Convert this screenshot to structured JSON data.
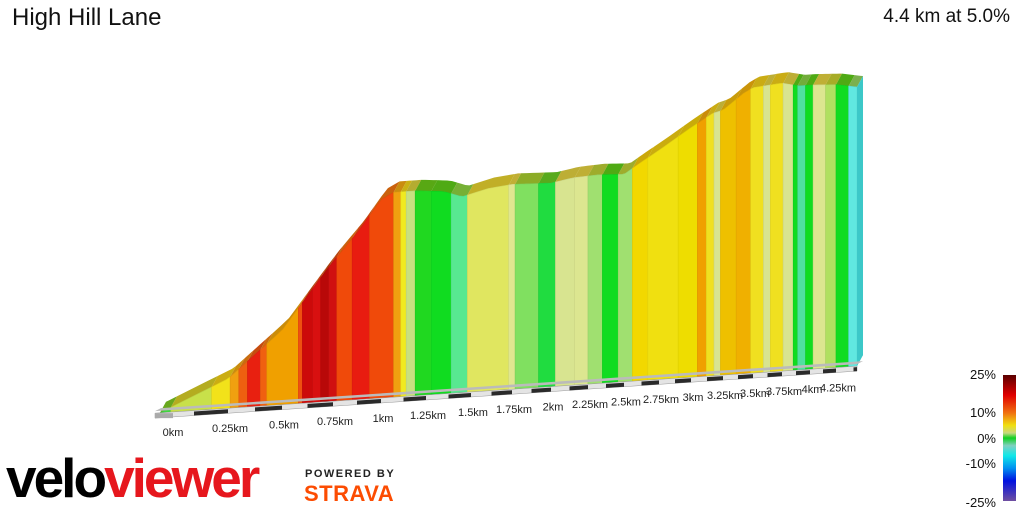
{
  "header": {
    "title": "High Hill Lane",
    "summary": "4.4 km at 5.0%"
  },
  "branding": {
    "logo_left": "velo",
    "logo_right": "viewer",
    "powered_by": "POWERED BY",
    "strava": "STRAVA"
  },
  "legend": {
    "labels": [
      "25%",
      "10%",
      "0%",
      "-10%",
      "-25%"
    ],
    "stops": [
      {
        "pct": 25,
        "color": "#5a0000"
      },
      {
        "pct": 17,
        "color": "#e00000"
      },
      {
        "pct": 10,
        "color": "#f07010"
      },
      {
        "pct": 5,
        "color": "#f0e010"
      },
      {
        "pct": 2,
        "color": "#c8d880"
      },
      {
        "pct": 0,
        "color": "#10d020"
      },
      {
        "pct": -3,
        "color": "#80d0c0"
      },
      {
        "pct": -7,
        "color": "#10e8e8"
      },
      {
        "pct": -12,
        "color": "#0090f0"
      },
      {
        "pct": -17,
        "color": "#0010e0"
      },
      {
        "pct": -25,
        "color": "#7050a0"
      }
    ]
  },
  "chart_data": {
    "type": "area",
    "title": "",
    "xlabel": "",
    "ylabel": "",
    "x_unit": "km",
    "xlim": [
      0,
      4.4
    ],
    "tick_labels": [
      "0km",
      "0.25km",
      "0.5km",
      "0.75km",
      "1km",
      "1.25km",
      "1.5km",
      "1.75km",
      "2km",
      "2.25km",
      "2.5km",
      "2.75km",
      "3km",
      "3.25km",
      "3.5km",
      "3.75km",
      "4km",
      "4.25km"
    ],
    "tick_values": [
      0,
      0.25,
      0.5,
      0.75,
      1,
      1.25,
      1.5,
      1.75,
      2,
      2.25,
      2.5,
      2.75,
      3,
      3.25,
      3.5,
      3.75,
      4,
      4.25
    ],
    "elevation_profile_relative_m": [
      [
        0,
        0
      ],
      [
        0.25,
        23
      ],
      [
        0.5,
        58
      ],
      [
        0.68,
        95
      ],
      [
        0.75,
        109
      ],
      [
        0.88,
        131
      ],
      [
        1.0,
        155
      ],
      [
        1.07,
        160
      ],
      [
        1.2,
        160
      ],
      [
        1.35,
        158
      ],
      [
        1.45,
        153
      ],
      [
        1.6,
        158
      ],
      [
        1.75,
        160
      ],
      [
        2.0,
        159
      ],
      [
        2.15,
        162
      ],
      [
        2.32,
        163
      ],
      [
        2.5,
        162
      ],
      [
        2.6,
        169
      ],
      [
        2.75,
        179
      ],
      [
        3.0,
        195
      ],
      [
        3.17,
        205
      ],
      [
        3.25,
        207
      ],
      [
        3.42,
        219
      ],
      [
        3.5,
        223
      ],
      [
        3.75,
        225
      ],
      [
        3.9,
        222
      ],
      [
        4.0,
        222
      ],
      [
        4.25,
        221
      ],
      [
        4.4,
        218
      ]
    ],
    "segments": [
      {
        "start_km": 0,
        "gradient": 1,
        "color": "#3ed63e"
      },
      {
        "start_km": 0.04,
        "gradient": 3,
        "color": "#c8e04a"
      },
      {
        "start_km": 0.19,
        "gradient": 6,
        "color": "#f2e21a"
      },
      {
        "start_km": 0.26,
        "gradient": 9,
        "color": "#f0a010"
      },
      {
        "start_km": 0.3,
        "gradient": 11,
        "color": "#ee6010"
      },
      {
        "start_km": 0.34,
        "gradient": 14,
        "color": "#e82010"
      },
      {
        "start_km": 0.4,
        "gradient": 11,
        "color": "#f06010"
      },
      {
        "start_km": 0.43,
        "gradient": 9,
        "color": "#f0a000"
      },
      {
        "start_km": 0.58,
        "gradient": 13,
        "color": "#ee5010"
      },
      {
        "start_km": 0.6,
        "gradient": 17,
        "color": "#cc0a0a"
      },
      {
        "start_km": 0.65,
        "gradient": 15,
        "color": "#d81010"
      },
      {
        "start_km": 0.69,
        "gradient": 19,
        "color": "#b80808"
      },
      {
        "start_km": 0.73,
        "gradient": 16,
        "color": "#d01010"
      },
      {
        "start_km": 0.77,
        "gradient": 12,
        "color": "#f04a0a"
      },
      {
        "start_km": 0.85,
        "gradient": 14,
        "color": "#e81c10"
      },
      {
        "start_km": 0.94,
        "gradient": 12,
        "color": "#f04a0a"
      },
      {
        "start_km": 1.07,
        "gradient": 9,
        "color": "#f0a010"
      },
      {
        "start_km": 1.11,
        "gradient": 5,
        "color": "#f0ea20"
      },
      {
        "start_km": 1.14,
        "gradient": 2,
        "color": "#c8e080"
      },
      {
        "start_km": 1.19,
        "gradient": 0,
        "color": "#20d820"
      },
      {
        "start_km": 1.28,
        "gradient": -1,
        "color": "#10dc20"
      },
      {
        "start_km": 1.39,
        "gradient": -5,
        "color": "#58e890"
      },
      {
        "start_km": 1.48,
        "gradient": 3,
        "color": "#e0e660"
      },
      {
        "start_km": 1.73,
        "gradient": 2,
        "color": "#e0e690"
      },
      {
        "start_km": 1.77,
        "gradient": 1,
        "color": "#80e060"
      },
      {
        "start_km": 1.92,
        "gradient": 0,
        "color": "#20dc40"
      },
      {
        "start_km": 2.03,
        "gradient": 2,
        "color": "#d8e490"
      },
      {
        "start_km": 2.16,
        "gradient": 2,
        "color": "#dce690"
      },
      {
        "start_km": 2.25,
        "gradient": 1,
        "color": "#a0e070"
      },
      {
        "start_km": 2.35,
        "gradient": 0,
        "color": "#10dc20"
      },
      {
        "start_km": 2.46,
        "gradient": 1,
        "color": "#a0e070"
      },
      {
        "start_km": 2.56,
        "gradient": 6,
        "color": "#f2d800"
      },
      {
        "start_km": 2.67,
        "gradient": 5,
        "color": "#f0e010"
      },
      {
        "start_km": 2.9,
        "gradient": 6,
        "color": "#eedd00"
      },
      {
        "start_km": 3.05,
        "gradient": 9,
        "color": "#f0a000"
      },
      {
        "start_km": 3.12,
        "gradient": 5,
        "color": "#f0e020"
      },
      {
        "start_km": 3.18,
        "gradient": 2,
        "color": "#d8e490"
      },
      {
        "start_km": 3.23,
        "gradient": 7,
        "color": "#eec000"
      },
      {
        "start_km": 3.36,
        "gradient": 8,
        "color": "#f0b000"
      },
      {
        "start_km": 3.48,
        "gradient": 5,
        "color": "#f0e020"
      },
      {
        "start_km": 3.59,
        "gradient": 2,
        "color": "#d8e490"
      },
      {
        "start_km": 3.65,
        "gradient": 5,
        "color": "#f0e020"
      },
      {
        "start_km": 3.76,
        "gradient": 2,
        "color": "#d8e490"
      },
      {
        "start_km": 3.85,
        "gradient": 0,
        "color": "#10dc20"
      },
      {
        "start_km": 3.89,
        "gradient": -4,
        "color": "#50e0a0"
      },
      {
        "start_km": 3.96,
        "gradient": 0,
        "color": "#10dc20"
      },
      {
        "start_km": 4.03,
        "gradient": 3,
        "color": "#dce690"
      },
      {
        "start_km": 4.15,
        "gradient": 2,
        "color": "#b0e060"
      },
      {
        "start_km": 4.25,
        "gradient": 0,
        "color": "#10dc20"
      },
      {
        "start_km": 4.34,
        "gradient": -6,
        "color": "#60e8e0"
      }
    ],
    "legend": "bottom-right color scale"
  }
}
